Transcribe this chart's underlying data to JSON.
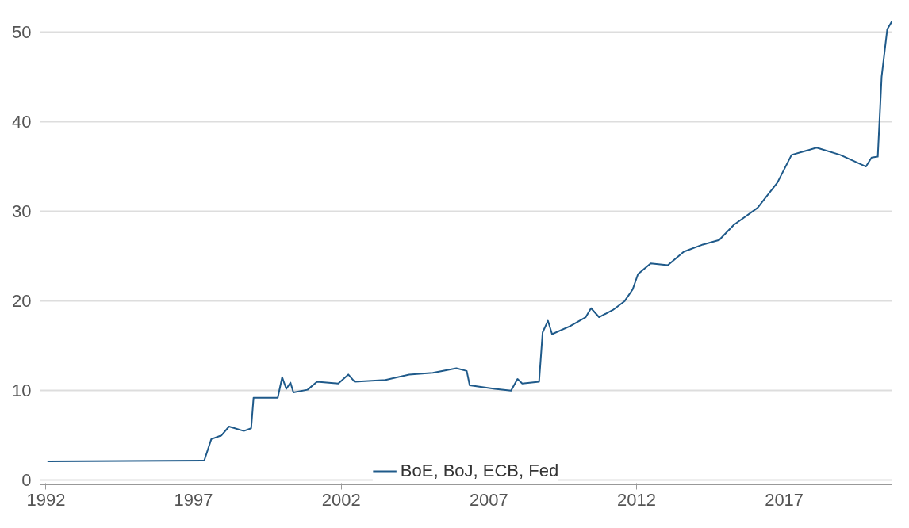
{
  "chart_data": {
    "type": "line",
    "xlim": [
      1991.8,
      2020.65
    ],
    "xticks": [
      1992,
      1997,
      2002,
      2007,
      2012,
      2017
    ],
    "ylim": [
      -0.5,
      53
    ],
    "yticks": [
      0,
      10,
      20,
      30,
      40,
      50
    ],
    "grid": "y",
    "legend": "bottom",
    "line_style": "solid",
    "series": [
      {
        "name": "BoE, BoJ, ECB, Fed",
        "color": "#1f5a8a",
        "x": [
          1992.05,
          1997.36,
          1997.6,
          1997.94,
          1998.2,
          1998.7,
          1998.95,
          1999.03,
          1999.85,
          2000.0,
          2000.14,
          2000.28,
          2000.38,
          2000.86,
          2001.18,
          2001.9,
          2002.24,
          2002.45,
          2003.5,
          2004.3,
          2005.1,
          2005.9,
          2006.25,
          2006.35,
          2007.2,
          2007.75,
          2007.97,
          2008.13,
          2008.7,
          2008.82,
          2009.0,
          2009.14,
          2009.75,
          2010.28,
          2010.46,
          2010.73,
          2011.2,
          2011.6,
          2011.87,
          2012.05,
          2012.48,
          2013.06,
          2013.6,
          2014.25,
          2014.8,
          2015.3,
          2016.1,
          2016.77,
          2017.25,
          2018.1,
          2018.9,
          2019.77,
          2019.96,
          2020.17,
          2020.3,
          2020.49,
          2020.65
        ],
        "values": [
          2.1,
          2.2,
          4.6,
          5.0,
          6.0,
          5.5,
          5.8,
          9.2,
          9.2,
          11.5,
          10.2,
          10.9,
          9.8,
          10.1,
          11.0,
          10.8,
          11.8,
          11.0,
          11.2,
          11.8,
          12.0,
          12.5,
          12.2,
          10.6,
          10.2,
          10.0,
          11.3,
          10.8,
          11.0,
          16.5,
          17.8,
          16.3,
          17.2,
          18.2,
          19.2,
          18.2,
          19.0,
          20.0,
          21.3,
          23.0,
          24.2,
          24.0,
          25.5,
          26.3,
          26.8,
          28.5,
          30.4,
          33.2,
          36.3,
          37.1,
          36.3,
          35.0,
          36.0,
          36.1,
          45.0,
          50.3,
          51.2
        ]
      }
    ]
  }
}
